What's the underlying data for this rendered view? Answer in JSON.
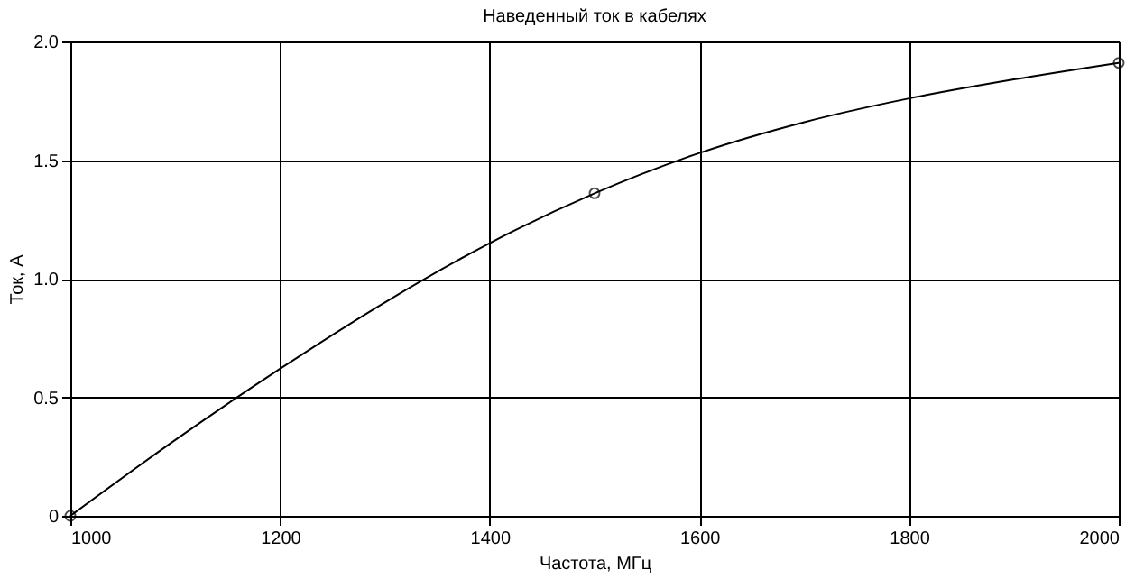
{
  "chart_data": {
    "type": "line",
    "title": "Наведенный ток в кабелях",
    "xlabel": "Частота, МГц",
    "ylabel": "Ток, А",
    "xlim": [
      1000,
      2000
    ],
    "xticks": [
      1000,
      1200,
      1400,
      1600,
      1800,
      2000
    ],
    "ylim": [
      0,
      2.0
    ],
    "yticks": [
      0,
      {
        "value": 0.5,
        "label": "0.5"
      },
      {
        "value": 1,
        "label": "1.0"
      },
      {
        "value": 1.5,
        "label": "1.5"
      },
      {
        "value": 2,
        "label": "2.0"
      }
    ],
    "grid": true,
    "series": [
      {
        "marker": "none",
        "color": "#000000",
        "x": [
          1000,
          1100,
          1200,
          1300,
          1400,
          1500,
          1600,
          1700,
          1800,
          1900,
          2000
        ],
        "values": [
          0,
          0.32,
          0.62,
          0.9,
          1.15,
          1.36,
          1.53,
          1.66,
          1.76,
          1.84,
          1.91
        ]
      },
      {
        "type": "scatter",
        "marker": "circle",
        "color": "#000000",
        "x": [
          1000,
          1500,
          2000
        ],
        "values": [
          0,
          1.36,
          1.91
        ]
      }
    ]
  }
}
